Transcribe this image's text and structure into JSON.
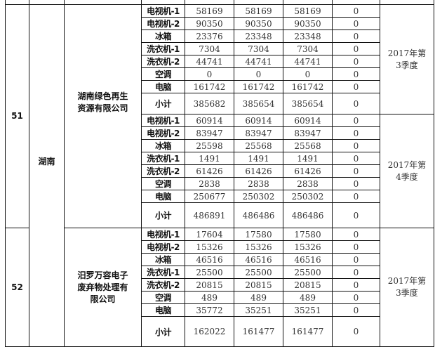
{
  "records": [
    {
      "no": "51",
      "province": "湖南",
      "company": "湖南绿色再生资源有限公司",
      "blocks": [
        {
          "period": "2017年第3季度",
          "rows": [
            {
              "item": "电视机-1",
              "v1": "58169",
              "v2": "58169",
              "v3": "58169",
              "v4": "0"
            },
            {
              "item": "电视机-2",
              "v1": "90350",
              "v2": "90350",
              "v3": "90350",
              "v4": "0"
            },
            {
              "item": "冰箱",
              "v1": "23376",
              "v2": "23348",
              "v3": "23348",
              "v4": "0"
            },
            {
              "item": "洗衣机-1",
              "v1": "7304",
              "v2": "7304",
              "v3": "7304",
              "v4": "0"
            },
            {
              "item": "洗衣机-2",
              "v1": "44741",
              "v2": "44741",
              "v3": "44741",
              "v4": "0"
            },
            {
              "item": "空调",
              "v1": "0",
              "v2": "0",
              "v3": "0",
              "v4": "0"
            },
            {
              "item": "电脑",
              "v1": "161742",
              "v2": "161742",
              "v3": "161742",
              "v4": "0"
            },
            {
              "item": "小计",
              "v1": "385682",
              "v2": "385654",
              "v3": "385654",
              "v4": "0"
            }
          ]
        },
        {
          "period": "2017年第4季度",
          "rows": [
            {
              "item": "电视机-1",
              "v1": "60914",
              "v2": "60914",
              "v3": "60914",
              "v4": "0"
            },
            {
              "item": "电视机-2",
              "v1": "83947",
              "v2": "83947",
              "v3": "83947",
              "v4": "0"
            },
            {
              "item": "冰箱",
              "v1": "25598",
              "v2": "25568",
              "v3": "25568",
              "v4": "0"
            },
            {
              "item": "洗衣机-1",
              "v1": "1491",
              "v2": "1491",
              "v3": "1491",
              "v4": "0"
            },
            {
              "item": "洗衣机-2",
              "v1": "61426",
              "v2": "61426",
              "v3": "61426",
              "v4": "0"
            },
            {
              "item": "空调",
              "v1": "2838",
              "v2": "2838",
              "v3": "2838",
              "v4": "0"
            },
            {
              "item": "电脑",
              "v1": "250677",
              "v2": "250302",
              "v3": "250302",
              "v4": "0"
            },
            {
              "item": "小计",
              "v1": "486891",
              "v2": "486486",
              "v3": "486486",
              "v4": "0"
            }
          ]
        }
      ]
    },
    {
      "no": "52",
      "company": "汨罗万容电子废弃物处理有限公司",
      "blocks": [
        {
          "period": "2017年第3季度",
          "rows": [
            {
              "item": "电视机-1",
              "v1": "17604",
              "v2": "17580",
              "v3": "17580",
              "v4": "0"
            },
            {
              "item": "电视机-2",
              "v1": "15326",
              "v2": "15326",
              "v3": "15326",
              "v4": "0"
            },
            {
              "item": "冰箱",
              "v1": "46516",
              "v2": "46516",
              "v3": "46516",
              "v4": "0"
            },
            {
              "item": "洗衣机-1",
              "v1": "25500",
              "v2": "25500",
              "v3": "25500",
              "v4": "0"
            },
            {
              "item": "洗衣机-2",
              "v1": "20815",
              "v2": "20815",
              "v3": "20815",
              "v4": "0"
            },
            {
              "item": "空调",
              "v1": "489",
              "v2": "489",
              "v3": "489",
              "v4": "0"
            },
            {
              "item": "电脑",
              "v1": "35772",
              "v2": "35251",
              "v3": "35251",
              "v4": "0"
            },
            {
              "item": "小计",
              "v1": "162022",
              "v2": "161477",
              "v3": "161477",
              "v4": "0"
            }
          ]
        }
      ]
    }
  ]
}
